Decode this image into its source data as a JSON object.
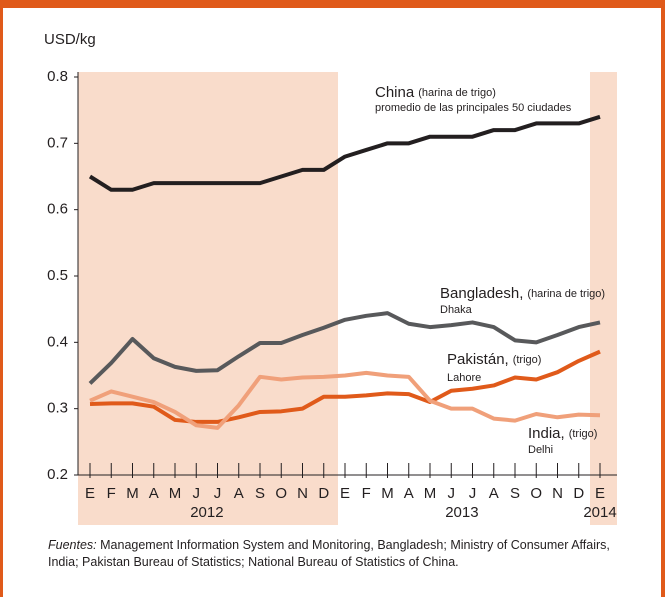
{
  "chart_data": {
    "type": "line",
    "y_label": "USD/kg",
    "categories": [
      "E",
      "F",
      "M",
      "A",
      "M",
      "J",
      "J",
      "A",
      "S",
      "O",
      "N",
      "D",
      "E",
      "F",
      "M",
      "A",
      "M",
      "J",
      "J",
      "A",
      "S",
      "O",
      "N",
      "D",
      "E"
    ],
    "years": [
      "2012",
      "2013",
      "2014"
    ],
    "ylim": [
      0.2,
      0.8
    ],
    "yticks": [
      0.2,
      0.3,
      0.4,
      0.5,
      0.6,
      0.7,
      0.8
    ],
    "series": [
      {
        "name": "China",
        "note": "(harina de trigo)",
        "place": "promedio de las principales 50 ciudades",
        "color": "#231f20",
        "values": [
          0.65,
          0.63,
          0.63,
          0.64,
          0.64,
          0.64,
          0.64,
          0.64,
          0.64,
          0.65,
          0.66,
          0.66,
          0.68,
          0.69,
          0.7,
          0.7,
          0.71,
          0.71,
          0.71,
          0.72,
          0.72,
          0.73,
          0.73,
          0.73,
          0.74
        ]
      },
      {
        "name": "Bangladesh,",
        "note": "(harina de trigo)",
        "place": "Dhaka",
        "color": "#58595b",
        "values": [
          0.338,
          0.369,
          0.405,
          0.376,
          0.363,
          0.357,
          0.358,
          0.379,
          0.399,
          0.399,
          0.411,
          0.422,
          0.434,
          0.44,
          0.444,
          0.428,
          0.423,
          0.426,
          0.43,
          0.423,
          0.403,
          0.4,
          0.411,
          0.423,
          0.43
        ]
      },
      {
        "name": "Pakistán,",
        "note": "(trigo)",
        "place": "Lahore",
        "color": "#e05a1a",
        "values": [
          0.307,
          0.308,
          0.308,
          0.303,
          0.283,
          0.28,
          0.28,
          0.287,
          0.295,
          0.296,
          0.3,
          0.318,
          0.318,
          0.32,
          0.323,
          0.322,
          0.31,
          0.327,
          0.33,
          0.335,
          0.347,
          0.344,
          0.355,
          0.372,
          0.386
        ]
      },
      {
        "name": "India,",
        "note": "(trigo)",
        "place": "Delhi",
        "color": "#f0a07a",
        "values": [
          0.312,
          0.326,
          0.318,
          0.31,
          0.295,
          0.275,
          0.271,
          0.305,
          0.348,
          0.344,
          0.347,
          0.348,
          0.35,
          0.354,
          0.35,
          0.348,
          0.312,
          0.3,
          0.3,
          0.285,
          0.282,
          0.292,
          0.287,
          0.291,
          0.29
        ]
      }
    ],
    "source_label": "Fuentes:",
    "source": "Management Information System and Monitoring, Bangladesh; Ministry of Consumer Affairs, India; Pakistan Bureau of Statistics; National Bureau of Statistics of China."
  }
}
